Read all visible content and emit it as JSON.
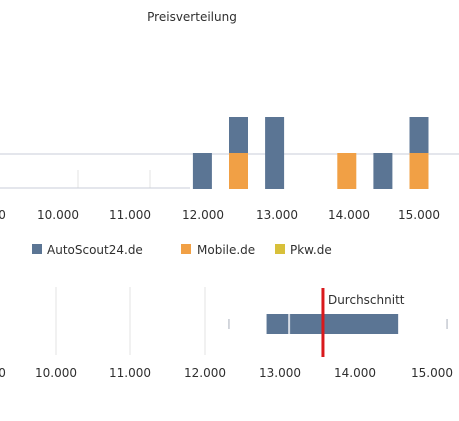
{
  "colors": {
    "autoscout": "#5b7594",
    "mobile": "#f1a045",
    "pkw": "#d8c03a",
    "baseline": "#c9ced8",
    "whisker": "#a9b0bb",
    "mean_line": "#d9191c",
    "grid": "#e3e3e3"
  },
  "chart_data": [
    {
      "type": "bar",
      "title": "Preisverteilung",
      "tick_labels": [
        "0",
        "10.000",
        "11.000",
        "12.000",
        "13.000",
        "14.000",
        "15.000"
      ],
      "xlim": [
        9500,
        15500
      ],
      "stacked": true,
      "legend_position": "bottom",
      "series": [
        {
          "name": "AutoScout24.de",
          "color_key": "autoscout",
          "points": [
            {
              "x": 12000,
              "count": 1
            },
            {
              "x": 12500,
              "count": 1
            },
            {
              "x": 13000,
              "count": 2
            },
            {
              "x": 14500,
              "count": 1
            },
            {
              "x": 15000,
              "count": 1
            }
          ]
        },
        {
          "name": "Mobile.de",
          "color_key": "mobile",
          "points": [
            {
              "x": 12500,
              "count": 1
            },
            {
              "x": 14000,
              "count": 1
            },
            {
              "x": 15000,
              "count": 1
            }
          ]
        },
        {
          "name": "Pkw.de",
          "color_key": "pkw",
          "points": []
        }
      ]
    },
    {
      "type": "box",
      "tick_labels": [
        "0",
        "10.000",
        "11.000",
        "12.000",
        "13.000",
        "14.000",
        "15.000"
      ],
      "xlim": [
        9500,
        15500
      ],
      "min": 12300,
      "q1": 12800,
      "median": 13100,
      "q3": 14550,
      "max": 15200,
      "mean": 13550,
      "mean_label": "Durchschnitt",
      "grid": true
    }
  ]
}
